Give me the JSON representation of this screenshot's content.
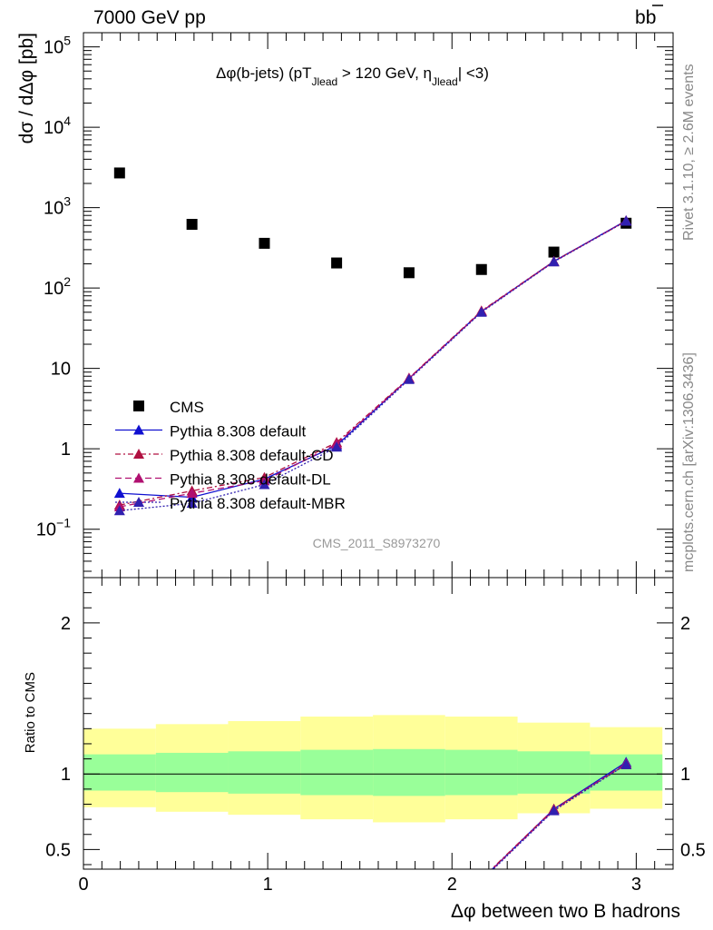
{
  "header": {
    "left": "7000 GeV pp",
    "right_base": "b",
    "right_bar": "b"
  },
  "side_labels": {
    "rivet": "Rivet 3.1.10, ≥ 2.6M events",
    "mcplots": "mcplots.cern.ch [arXiv:1306.3436]"
  },
  "chart_data": {
    "type": "scatter",
    "title_parts": {
      "lead": "Δφ(b-jets) (pT",
      "sub1": "Jlead",
      "mid": " >  120 GeV, η",
      "sub2": "Jlead",
      "tail": "| <3)"
    },
    "analysis_id": "CMS_2011_S8973270",
    "xlabel": "Δφ between two B hadrons",
    "ylabel": "dσ / dΔφ [pb]",
    "ratio_ylabel": "Ratio to CMS",
    "xlim": [
      0,
      3.2
    ],
    "ylim": [
      0.025,
      150000
    ],
    "yscale": "log",
    "ratio_ylim": [
      0.37,
      2.3
    ],
    "x_ticks": [
      "0",
      "1",
      "2",
      "3"
    ],
    "y_ticks": [
      {
        "value": 0.1,
        "base": "10",
        "exp": "−1"
      },
      {
        "value": 1,
        "base": "1",
        "exp": ""
      },
      {
        "value": 10,
        "base": "10",
        "exp": ""
      },
      {
        "value": 100,
        "base": "10",
        "exp": "2"
      },
      {
        "value": 1000,
        "base": "10",
        "exp": "3"
      },
      {
        "value": 10000,
        "base": "10",
        "exp": "4"
      },
      {
        "value": 100000,
        "base": "10",
        "exp": "5"
      }
    ],
    "ratio_ticks": [
      {
        "value": 0.5,
        "label": "0.5"
      },
      {
        "value": 1,
        "label": "1"
      },
      {
        "value": 2,
        "label": "2"
      }
    ],
    "bin_edges": [
      0,
      0.393,
      0.785,
      1.178,
      1.571,
      1.963,
      2.356,
      2.749,
      3.142
    ],
    "x": [
      0.196,
      0.589,
      0.982,
      1.374,
      1.767,
      2.16,
      2.553,
      2.945
    ],
    "cms": [
      2700,
      620,
      360,
      205,
      155,
      170,
      280,
      640
    ],
    "band_inner": [
      [
        0.89,
        1.13
      ],
      [
        0.88,
        1.14
      ],
      [
        0.87,
        1.15
      ],
      [
        0.86,
        1.16
      ],
      [
        0.855,
        1.165
      ],
      [
        0.86,
        1.16
      ],
      [
        0.87,
        1.15
      ],
      [
        0.89,
        1.13
      ]
    ],
    "band_outer": [
      [
        0.78,
        1.3
      ],
      [
        0.75,
        1.33
      ],
      [
        0.73,
        1.35
      ],
      [
        0.7,
        1.38
      ],
      [
        0.68,
        1.39
      ],
      [
        0.7,
        1.38
      ],
      [
        0.74,
        1.34
      ],
      [
        0.77,
        1.31
      ]
    ],
    "legend": {
      "placement": "lower-left",
      "data_label": "CMS"
    },
    "series": [
      {
        "name": "Pythia 8.308 default",
        "color": "#1010d0",
        "dash": "",
        "values": [
          0.28,
          0.25,
          0.42,
          1.1,
          7.5,
          51,
          215,
          690
        ]
      },
      {
        "name": "Pythia 8.308 default-CD",
        "color": "#b01040",
        "dash": "6 3 2 3",
        "values": [
          0.2,
          0.3,
          0.44,
          1.2,
          7.6,
          52,
          215,
          680
        ]
      },
      {
        "name": "Pythia 8.308 default-DL",
        "color": "#b01070",
        "dash": "7 4",
        "values": [
          0.19,
          0.28,
          0.4,
          1.15,
          7.5,
          51,
          213,
          685
        ]
      },
      {
        "name": "Pythia 8.308 default-MBR",
        "color": "#3020b0",
        "dash": "2 2",
        "values": [
          0.17,
          0.21,
          0.36,
          1.05,
          7.3,
          50,
          212,
          680
        ]
      }
    ]
  }
}
